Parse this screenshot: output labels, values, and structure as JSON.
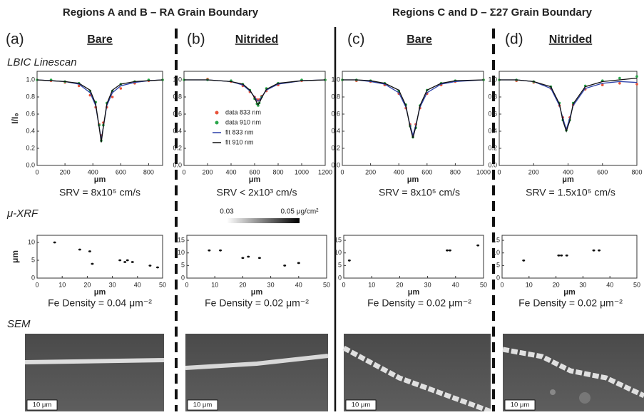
{
  "header": {
    "left": "Regions A and B – RA Grain Boundary",
    "right": "Regions C and D – Σ27 Grain Boundary"
  },
  "section_labels": {
    "linescan": "LBIC Linescan",
    "xrf": "μ-XRF",
    "sem": "SEM"
  },
  "colorbar": {
    "min_label": "0.03",
    "max_label": "0.05 μg/cm²"
  },
  "panels": [
    {
      "label": "(a)",
      "title": "Bare",
      "srv": "SRV = 8x10⁵ cm/s",
      "fe_density": "Fe Density = 0.04 μm⁻²",
      "scale_bar": "10 μm"
    },
    {
      "label": "(b)",
      "title": "Nitrided",
      "srv": "SRV < 2x10³ cm/s",
      "fe_density": "Fe Density = 0.02 μm⁻²",
      "scale_bar": "10 μm"
    },
    {
      "label": "(c)",
      "title": "Bare",
      "srv": "SRV = 8x10⁵ cm/s",
      "fe_density": "Fe Density = 0.02 μm⁻²",
      "scale_bar": "10 μm"
    },
    {
      "label": "(d)",
      "title": "Nitrided",
      "srv": "SRV = 1.5x10⁵ cm/s",
      "fe_density": "Fe Density = 0.02 μm⁻²",
      "scale_bar": "10 μm"
    }
  ],
  "chart_data": [
    {
      "type": "line",
      "xlabel": "μm",
      "ylabel": "I/I₀",
      "x": [
        0,
        100,
        200,
        300,
        380,
        420,
        445,
        460,
        475,
        500,
        540,
        600,
        700,
        800,
        900
      ],
      "xlim": [
        0,
        900
      ],
      "xticks": [
        0,
        200,
        400,
        600,
        800
      ],
      "ylim": [
        0,
        1.1
      ],
      "yticks": [
        {
          "value": 0,
          "label": "0.0"
        },
        0.2,
        0.4,
        0.6,
        0.8,
        {
          "value": 1,
          "label": "1.0"
        }
      ],
      "series": [
        {
          "name": "data 833 nm",
          "color": "#e8523a",
          "style": "dots",
          "values": [
            1.0,
            0.99,
            0.97,
            0.93,
            0.82,
            0.68,
            0.48,
            0.35,
            0.5,
            0.68,
            0.8,
            0.9,
            0.96,
            0.99,
            1.0
          ]
        },
        {
          "name": "data 910 nm",
          "color": "#2aa64a",
          "style": "dots",
          "values": [
            1.0,
            1.0,
            0.98,
            0.96,
            0.87,
            0.74,
            0.47,
            0.29,
            0.47,
            0.73,
            0.87,
            0.95,
            0.98,
            1.0,
            1.0
          ]
        },
        {
          "name": "fit 833 nm",
          "color": "#2b3fa8",
          "style": "line",
          "values": [
            1.0,
            0.99,
            0.98,
            0.95,
            0.85,
            0.7,
            0.45,
            0.3,
            0.45,
            0.7,
            0.85,
            0.93,
            0.97,
            0.99,
            1.0
          ]
        },
        {
          "name": "fit 910 nm",
          "color": "#111111",
          "style": "line",
          "values": [
            1.0,
            0.99,
            0.98,
            0.96,
            0.88,
            0.72,
            0.45,
            0.27,
            0.45,
            0.72,
            0.88,
            0.95,
            0.98,
            0.99,
            1.0
          ]
        }
      ]
    },
    {
      "type": "line",
      "xlabel": "μm",
      "legend": "inside",
      "x": [
        0,
        200,
        400,
        500,
        560,
        600,
        620,
        630,
        640,
        660,
        700,
        800,
        1000,
        1200
      ],
      "xlim": [
        0,
        1200
      ],
      "xticks": [
        0,
        200,
        400,
        600,
        800,
        1000,
        1200
      ],
      "ylim": [
        0,
        1.1
      ],
      "yticks": [
        {
          "value": 0,
          "label": "0.0"
        },
        0.2,
        0.4,
        0.6,
        0.8,
        {
          "value": 1,
          "label": "1.0"
        }
      ],
      "series": [
        {
          "name": "data 833 nm",
          "color": "#e8523a",
          "style": "dots",
          "values": [
            1.0,
            1.01,
            0.98,
            0.93,
            0.86,
            0.8,
            0.77,
            0.76,
            0.77,
            0.81,
            0.87,
            0.94,
            0.99,
            1.0
          ]
        },
        {
          "name": "data 910 nm",
          "color": "#2aa64a",
          "style": "dots",
          "values": [
            1.0,
            1.0,
            0.99,
            0.95,
            0.88,
            0.78,
            0.72,
            0.7,
            0.73,
            0.8,
            0.9,
            0.96,
            1.0,
            1.0
          ]
        },
        {
          "name": "fit 833 nm",
          "color": "#2b3fa8",
          "style": "line",
          "values": [
            1.0,
            1.0,
            0.98,
            0.94,
            0.87,
            0.8,
            0.76,
            0.75,
            0.76,
            0.8,
            0.88,
            0.95,
            0.99,
            1.0
          ]
        },
        {
          "name": "fit 910 nm",
          "color": "#111111",
          "style": "line",
          "values": [
            1.0,
            1.0,
            0.98,
            0.95,
            0.88,
            0.79,
            0.73,
            0.71,
            0.73,
            0.79,
            0.89,
            0.96,
            0.99,
            1.0
          ]
        }
      ]
    },
    {
      "type": "line",
      "xlabel": "μm",
      "x": [
        0,
        100,
        200,
        300,
        400,
        450,
        480,
        500,
        520,
        550,
        600,
        700,
        800,
        1000
      ],
      "xlim": [
        0,
        1000
      ],
      "xticks": [
        0,
        200,
        400,
        600,
        800,
        1000
      ],
      "ylim": [
        0,
        1.1
      ],
      "yticks": [
        {
          "value": 0,
          "label": "0.0"
        },
        0.2,
        0.4,
        0.6,
        0.8,
        {
          "value": 1,
          "label": "1.0"
        }
      ],
      "series": [
        {
          "name": "data 833 nm",
          "color": "#e8523a",
          "style": "dots",
          "values": [
            1.0,
            0.99,
            0.98,
            0.94,
            0.84,
            0.67,
            0.48,
            0.36,
            0.48,
            0.67,
            0.84,
            0.94,
            0.98,
            1.0
          ]
        },
        {
          "name": "data 910 nm",
          "color": "#2aa64a",
          "style": "dots",
          "values": [
            1.0,
            1.0,
            0.99,
            0.96,
            0.87,
            0.71,
            0.46,
            0.33,
            0.44,
            0.7,
            0.88,
            0.96,
            0.99,
            1.0
          ]
        },
        {
          "name": "fit 833 nm",
          "color": "#2b3fa8",
          "style": "line",
          "values": [
            1.0,
            1.0,
            0.98,
            0.95,
            0.85,
            0.68,
            0.47,
            0.35,
            0.47,
            0.68,
            0.85,
            0.95,
            0.98,
            1.0
          ]
        },
        {
          "name": "fit 910 nm",
          "color": "#111111",
          "style": "line",
          "values": [
            1.0,
            1.0,
            0.99,
            0.96,
            0.88,
            0.7,
            0.45,
            0.32,
            0.45,
            0.7,
            0.88,
            0.96,
            0.99,
            1.0
          ]
        }
      ]
    },
    {
      "type": "line",
      "xlabel": "μm",
      "x": [
        0,
        100,
        200,
        300,
        350,
        370,
        390,
        410,
        430,
        500,
        600,
        700,
        800
      ],
      "xlim": [
        0,
        800
      ],
      "xticks": [
        0,
        200,
        400,
        600,
        800
      ],
      "ylim": [
        0,
        1.1
      ],
      "yticks": [
        {
          "value": 0,
          "label": "0.0"
        },
        0.2,
        0.4,
        0.6,
        0.8,
        {
          "value": 1,
          "label": "1.0"
        }
      ],
      "series": [
        {
          "name": "data 833 nm",
          "color": "#e8523a",
          "style": "dots",
          "values": [
            1.0,
            0.99,
            0.97,
            0.9,
            0.7,
            0.56,
            0.43,
            0.56,
            0.71,
            0.89,
            0.94,
            0.96,
            0.95
          ]
        },
        {
          "name": "data 910 nm",
          "color": "#2aa64a",
          "style": "dots",
          "values": [
            1.0,
            1.0,
            0.98,
            0.92,
            0.73,
            0.53,
            0.41,
            0.53,
            0.73,
            0.93,
            0.99,
            1.02,
            1.04
          ]
        },
        {
          "name": "fit 833 nm",
          "color": "#2b3fa8",
          "style": "line",
          "values": [
            1.0,
            1.0,
            0.98,
            0.9,
            0.7,
            0.55,
            0.42,
            0.55,
            0.7,
            0.9,
            0.96,
            0.98,
            0.97
          ]
        },
        {
          "name": "fit 910 nm",
          "color": "#111111",
          "style": "line",
          "values": [
            1.0,
            1.0,
            0.98,
            0.92,
            0.72,
            0.52,
            0.4,
            0.52,
            0.72,
            0.92,
            0.98,
            1.0,
            1.02
          ]
        }
      ]
    },
    {
      "type": "scatter",
      "xlabel": "μm",
      "ylabel": "μm",
      "color": "#111111",
      "x": [
        7,
        17,
        21,
        22,
        33,
        35,
        36,
        38,
        45,
        48
      ],
      "y": [
        10,
        8,
        7.5,
        4,
        5,
        4.5,
        5,
        4.5,
        3.5,
        3
      ],
      "xlim": [
        0,
        50
      ],
      "xticks": [
        0,
        10,
        20,
        30,
        40,
        50
      ],
      "ylim": [
        0,
        12
      ],
      "yticks": [
        0,
        5,
        10
      ]
    },
    {
      "type": "scatter",
      "xlabel": "μm",
      "color": "#111111",
      "x": [
        8,
        12,
        20,
        22,
        26,
        35,
        40
      ],
      "y": [
        11,
        11,
        8,
        8.5,
        8,
        5,
        6
      ],
      "xlim": [
        0,
        50
      ],
      "xticks": [
        0,
        10,
        20,
        30,
        40,
        50
      ],
      "ylim": [
        0,
        17
      ],
      "yticks": [
        0,
        5,
        10,
        15
      ]
    },
    {
      "type": "scatter",
      "xlabel": "μm",
      "color": "#111111",
      "x": [
        2,
        37,
        38,
        48
      ],
      "y": [
        7,
        11,
        11,
        13
      ],
      "xlim": [
        0,
        50
      ],
      "xticks": [
        0,
        10,
        20,
        30,
        40,
        50
      ],
      "ylim": [
        0,
        17
      ],
      "yticks": [
        0,
        5,
        10,
        15
      ]
    },
    {
      "type": "scatter",
      "xlabel": "μm",
      "color": "#111111",
      "x": [
        8,
        21,
        22,
        24,
        34,
        36
      ],
      "y": [
        7,
        9,
        9,
        9,
        11,
        11
      ],
      "xlim": [
        0,
        50
      ],
      "xticks": [
        0,
        10,
        20,
        30,
        40,
        50
      ],
      "ylim": [
        0,
        17
      ],
      "yticks": [
        0,
        5,
        10,
        15
      ]
    }
  ]
}
